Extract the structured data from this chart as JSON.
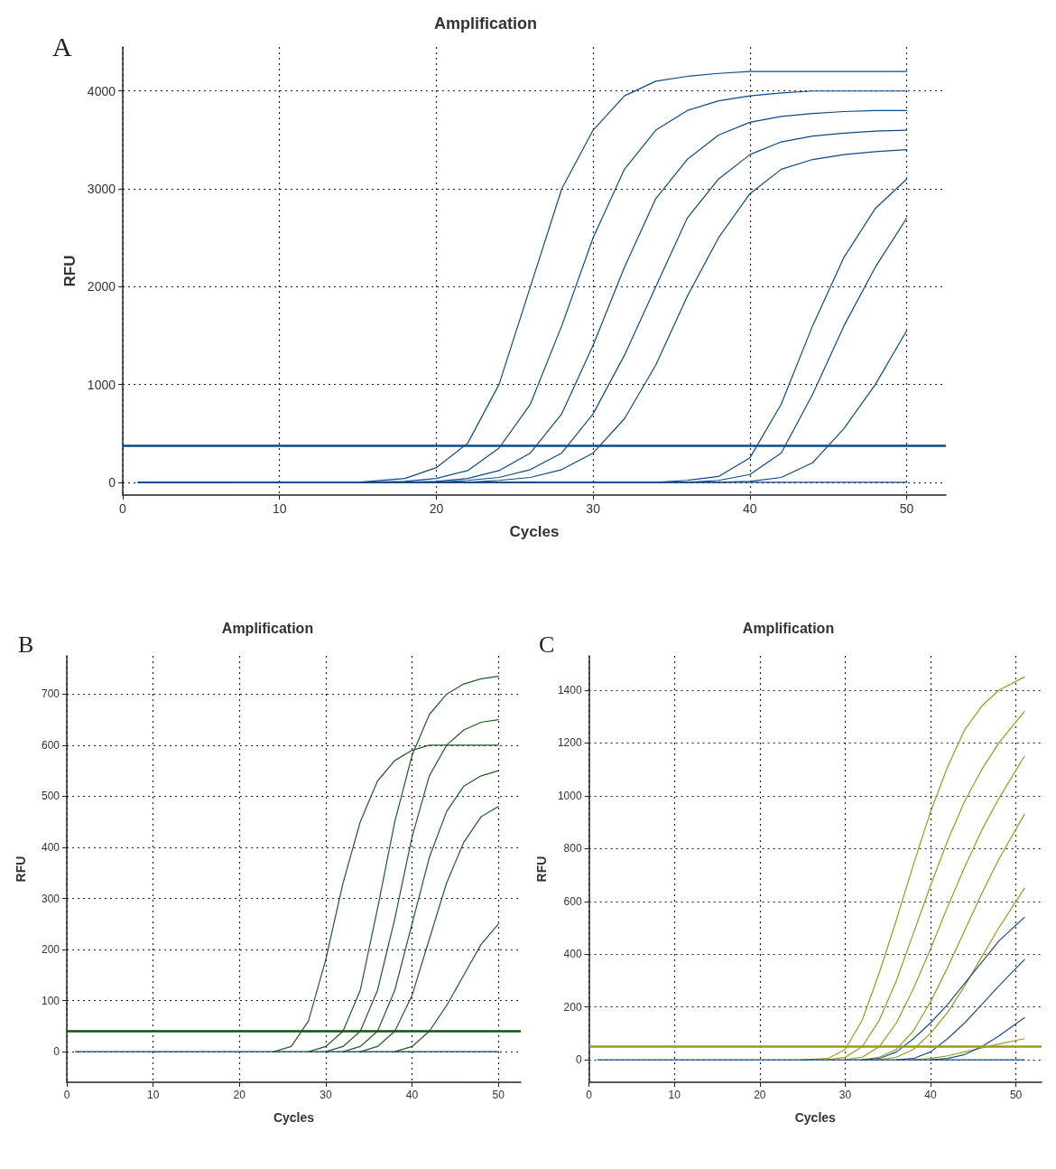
{
  "chart_data": [
    {
      "type": "line",
      "title": "Amplification",
      "xlabel": "Cycles",
      "ylabel": "RFU",
      "annotations": [
        "A"
      ],
      "grid": true,
      "marker": "none",
      "line_style": "solid",
      "xlim": [
        0,
        52.5
      ],
      "xticks": [
        0,
        10,
        20,
        30,
        40,
        50
      ],
      "ylim": [
        -130,
        4450
      ],
      "yticks": [
        0,
        1000,
        2000,
        3000,
        4000
      ],
      "x": [
        1,
        5,
        10,
        15,
        18,
        20,
        22,
        24,
        26,
        28,
        30,
        32,
        34,
        36,
        38,
        40,
        42,
        44,
        46,
        48,
        50
      ],
      "ref_lines": [
        {
          "axis": "y",
          "value": 380,
          "color": "#0b4a8b"
        }
      ],
      "series": [
        {
          "color": "#0b4a8b",
          "values": [
            0,
            0,
            0,
            0,
            40,
            150,
            400,
            1000,
            2000,
            3000,
            3600,
            3950,
            4100,
            4150,
            4180,
            4200,
            4200,
            4200,
            4200,
            4200,
            4200
          ]
        },
        {
          "color": "#0b4a8b",
          "values": [
            0,
            0,
            0,
            0,
            10,
            40,
            120,
            350,
            800,
            1600,
            2500,
            3200,
            3600,
            3800,
            3900,
            3950,
            3980,
            4000,
            4000,
            4000,
            4000
          ]
        },
        {
          "color": "#0b4a8b",
          "values": [
            0,
            0,
            0,
            0,
            0,
            10,
            40,
            120,
            300,
            700,
            1400,
            2200,
            2900,
            3300,
            3550,
            3680,
            3740,
            3770,
            3790,
            3800,
            3800
          ]
        },
        {
          "color": "#0b4a8b",
          "values": [
            0,
            0,
            0,
            0,
            0,
            0,
            20,
            50,
            130,
            300,
            700,
            1300,
            2000,
            2700,
            3100,
            3350,
            3480,
            3540,
            3570,
            3590,
            3600
          ]
        },
        {
          "color": "#0b4a8b",
          "values": [
            0,
            0,
            0,
            0,
            0,
            0,
            0,
            20,
            50,
            130,
            300,
            650,
            1200,
            1900,
            2500,
            2950,
            3200,
            3300,
            3350,
            3380,
            3400
          ]
        },
        {
          "color": "#0b4a8b",
          "values": [
            0,
            0,
            0,
            0,
            0,
            0,
            0,
            0,
            0,
            0,
            0,
            0,
            0,
            20,
            60,
            250,
            800,
            1600,
            2300,
            2800,
            3100
          ]
        },
        {
          "color": "#0b4a8b",
          "values": [
            0,
            0,
            0,
            0,
            0,
            0,
            0,
            0,
            0,
            0,
            0,
            0,
            0,
            0,
            20,
            80,
            300,
            900,
            1600,
            2200,
            2700
          ]
        },
        {
          "color": "#0b4a8b",
          "values": [
            0,
            0,
            0,
            0,
            0,
            0,
            0,
            0,
            0,
            0,
            0,
            0,
            0,
            0,
            0,
            10,
            50,
            200,
            550,
            1000,
            1550
          ]
        },
        {
          "color": "#0b4a8b",
          "values": [
            0,
            0,
            0,
            0,
            0,
            0,
            0,
            0,
            0,
            0,
            0,
            0,
            0,
            0,
            0,
            0,
            0,
            0,
            0,
            0,
            0
          ]
        }
      ]
    },
    {
      "type": "line",
      "title": "Amplification",
      "xlabel": "Cycles",
      "ylabel": "RFU",
      "annotations": [
        "B"
      ],
      "grid": true,
      "marker": "none",
      "line_style": "solid",
      "xlim": [
        0,
        52.6
      ],
      "xticks": [
        0,
        10,
        20,
        30,
        40,
        50
      ],
      "ylim": [
        -60,
        775
      ],
      "yticks": [
        0,
        100,
        200,
        300,
        400,
        500,
        600,
        700
      ],
      "x": [
        1,
        5,
        10,
        15,
        18,
        20,
        22,
        24,
        26,
        28,
        30,
        32,
        34,
        36,
        38,
        40,
        42,
        44,
        46,
        48,
        50
      ],
      "ref_lines": [
        {
          "axis": "y",
          "value": 40,
          "color": "#0f5216"
        }
      ],
      "series": [
        {
          "color": "#1f5e24",
          "values": [
            null,
            null,
            null,
            null,
            null,
            null,
            null,
            0,
            10,
            60,
            180,
            330,
            450,
            530,
            570,
            590,
            600,
            600,
            600,
            600,
            600
          ]
        },
        {
          "color": "#1f5e24",
          "values": [
            null,
            null,
            null,
            null,
            null,
            null,
            null,
            null,
            null,
            0,
            10,
            40,
            120,
            280,
            450,
            580,
            660,
            700,
            720,
            730,
            735
          ]
        },
        {
          "color": "#1f5e24",
          "values": [
            null,
            null,
            null,
            null,
            null,
            null,
            null,
            null,
            null,
            null,
            0,
            10,
            40,
            120,
            260,
            420,
            540,
            600,
            630,
            645,
            650
          ]
        },
        {
          "color": "#1f5e24",
          "values": [
            null,
            null,
            null,
            null,
            null,
            null,
            null,
            null,
            null,
            null,
            null,
            0,
            10,
            40,
            120,
            250,
            380,
            470,
            520,
            540,
            550
          ]
        },
        {
          "color": "#1f5e24",
          "values": [
            null,
            null,
            null,
            null,
            null,
            null,
            null,
            null,
            null,
            null,
            null,
            null,
            0,
            10,
            40,
            110,
            220,
            330,
            410,
            460,
            480
          ]
        },
        {
          "color": "#1f5e24",
          "values": [
            null,
            null,
            null,
            null,
            null,
            null,
            null,
            null,
            null,
            null,
            null,
            null,
            null,
            null,
            0,
            10,
            40,
            90,
            150,
            210,
            250
          ]
        },
        {
          "color": "#0d3f70",
          "values": [
            0,
            0,
            0,
            0,
            0,
            0,
            0,
            0,
            0,
            0,
            0,
            0,
            0,
            0,
            0,
            0,
            0,
            0,
            0,
            0,
            0
          ]
        }
      ]
    },
    {
      "type": "line",
      "title": "Amplification",
      "xlabel": "Cycles",
      "ylabel": "RFU",
      "annotations": [
        "C"
      ],
      "grid": true,
      "marker": "none",
      "line_style": "solid",
      "xlim": [
        0,
        53
      ],
      "xticks": [
        0,
        10,
        20,
        30,
        40,
        50
      ],
      "ylim": [
        -85,
        1530
      ],
      "yticks": [
        0,
        200,
        400,
        600,
        800,
        1000,
        1200,
        1400
      ],
      "x": [
        1,
        5,
        10,
        15,
        20,
        25,
        28,
        30,
        32,
        34,
        36,
        38,
        40,
        42,
        44,
        46,
        48,
        51
      ],
      "ref_lines": [
        {
          "axis": "y",
          "value": 50,
          "color": "#9a9a1e"
        }
      ],
      "series": [
        {
          "color": "#9a9a1e",
          "values": [
            null,
            null,
            null,
            null,
            null,
            0,
            5,
            40,
            150,
            330,
            530,
            740,
            940,
            1110,
            1250,
            1340,
            1400,
            1450
          ]
        },
        {
          "color": "#9a9a1e",
          "values": [
            null,
            null,
            null,
            null,
            null,
            null,
            0,
            10,
            50,
            150,
            300,
            480,
            660,
            830,
            980,
            1100,
            1200,
            1320
          ]
        },
        {
          "color": "#9a9a1e",
          "values": [
            null,
            null,
            null,
            null,
            null,
            null,
            null,
            0,
            10,
            50,
            140,
            270,
            420,
            580,
            730,
            870,
            990,
            1150
          ]
        },
        {
          "color": "#9a9a1e",
          "values": [
            null,
            null,
            null,
            null,
            null,
            null,
            null,
            null,
            0,
            10,
            40,
            110,
            220,
            350,
            490,
            630,
            760,
            930
          ]
        },
        {
          "color": "#9a9a1e",
          "values": [
            null,
            null,
            null,
            null,
            null,
            null,
            null,
            null,
            null,
            0,
            10,
            40,
            100,
            180,
            280,
            390,
            500,
            650
          ]
        },
        {
          "color": "#9a9a1e",
          "values": [
            null,
            null,
            null,
            null,
            null,
            null,
            null,
            null,
            null,
            null,
            null,
            0,
            5,
            15,
            30,
            45,
            60,
            80
          ]
        },
        {
          "color": "#1c4f8a",
          "values": [
            null,
            null,
            null,
            null,
            null,
            null,
            null,
            null,
            0,
            5,
            30,
            80,
            140,
            210,
            290,
            370,
            450,
            540
          ]
        },
        {
          "color": "#1c4f8a",
          "values": [
            null,
            null,
            null,
            null,
            null,
            null,
            null,
            null,
            null,
            null,
            0,
            5,
            30,
            80,
            140,
            210,
            280,
            380
          ]
        },
        {
          "color": "#1c4f8a",
          "values": [
            null,
            null,
            null,
            null,
            null,
            null,
            null,
            null,
            null,
            null,
            null,
            null,
            0,
            5,
            20,
            50,
            90,
            160
          ]
        },
        {
          "color": "#1c4f8a",
          "values": [
            0,
            0,
            0,
            0,
            0,
            0,
            0,
            0,
            0,
            0,
            0,
            0,
            0,
            0,
            0,
            0,
            0,
            0
          ]
        }
      ]
    }
  ]
}
